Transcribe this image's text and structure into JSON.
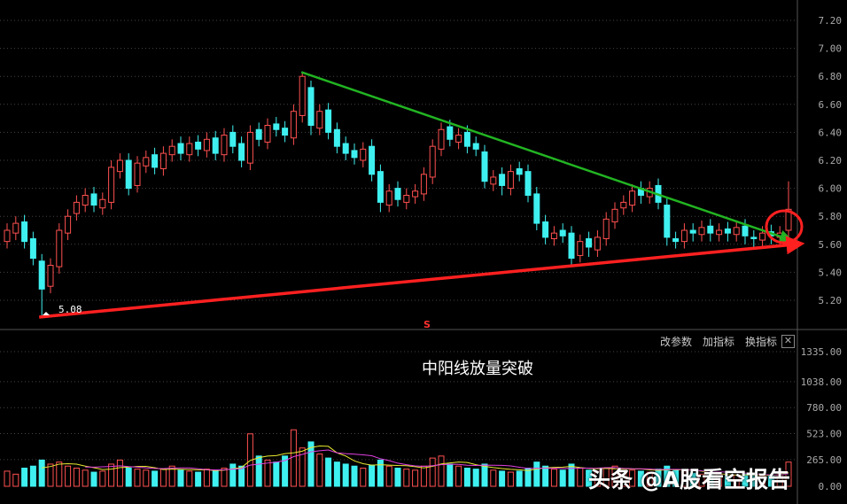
{
  "chart_data": [
    {
      "type": "candlestick",
      "title": "",
      "y_axis": {
        "ticks": [
          "7.20",
          "7.00",
          "6.80",
          "6.60",
          "6.40",
          "6.20",
          "6.00",
          "5.80",
          "5.60",
          "5.40",
          "5.20"
        ],
        "range": [
          5.2,
          7.2
        ],
        "position": "right"
      },
      "grid": true,
      "open": [
        5.62,
        5.68,
        5.76,
        5.64,
        5.48,
        5.3,
        5.44,
        5.68,
        5.82,
        5.88,
        5.96,
        5.86,
        5.9,
        6.12,
        6.2,
        6.02,
        6.16,
        6.24,
        6.14,
        6.24,
        6.32,
        6.24,
        6.33,
        6.27,
        6.36,
        6.24,
        6.4,
        6.32,
        6.18,
        6.42,
        6.33,
        6.46,
        6.43,
        6.36,
        6.52,
        6.72,
        6.43,
        6.56,
        6.42,
        6.32,
        6.27,
        6.2,
        6.3,
        6.12,
        5.88,
        6.0,
        5.9,
        5.94,
        5.96,
        6.08,
        6.28,
        6.44,
        6.33,
        6.4,
        6.32,
        6.26,
        6.03,
        6.1,
        6.0,
        6.14,
        6.12,
        5.96,
        5.76,
        5.64,
        5.7,
        5.68,
        5.52,
        5.64,
        5.56,
        5.64,
        5.76,
        5.86,
        5.88,
        6.0,
        5.94,
        6.02,
        5.88,
        5.64,
        5.62,
        5.7,
        5.67,
        5.73,
        5.67,
        5.71,
        5.67,
        5.73,
        5.65,
        5.63,
        5.69,
        5.65,
        5.7
      ],
      "high": [
        5.75,
        5.8,
        5.81,
        5.69,
        5.53,
        5.5,
        5.75,
        5.85,
        5.95,
        6.0,
        6.01,
        5.97,
        6.2,
        6.25,
        6.25,
        6.23,
        6.27,
        6.29,
        6.3,
        6.35,
        6.37,
        6.37,
        6.38,
        6.4,
        6.41,
        6.43,
        6.45,
        6.37,
        6.45,
        6.47,
        6.5,
        6.51,
        6.48,
        6.6,
        6.83,
        6.77,
        6.6,
        6.61,
        6.47,
        6.37,
        6.32,
        6.33,
        6.35,
        6.17,
        6.03,
        6.05,
        6.0,
        6.03,
        6.15,
        6.35,
        6.47,
        6.49,
        6.43,
        6.45,
        6.37,
        6.31,
        6.13,
        6.15,
        6.17,
        6.19,
        6.17,
        6.01,
        5.81,
        5.73,
        5.75,
        5.73,
        5.67,
        5.69,
        5.7,
        5.83,
        5.9,
        5.95,
        6.03,
        6.05,
        6.05,
        6.07,
        5.93,
        5.69,
        5.75,
        5.75,
        5.77,
        5.78,
        5.75,
        5.76,
        5.77,
        5.78,
        5.7,
        5.73,
        5.74,
        5.73,
        6.05
      ],
      "low": [
        5.57,
        5.63,
        5.57,
        5.45,
        5.08,
        5.25,
        5.39,
        5.63,
        5.77,
        5.83,
        5.83,
        5.81,
        5.85,
        6.07,
        5.95,
        5.97,
        6.11,
        6.1,
        6.09,
        6.19,
        6.2,
        6.19,
        6.23,
        6.22,
        6.2,
        6.19,
        6.25,
        6.15,
        6.13,
        6.3,
        6.28,
        6.37,
        6.33,
        6.31,
        6.47,
        6.38,
        6.38,
        6.35,
        6.25,
        6.2,
        6.17,
        6.15,
        6.05,
        5.83,
        5.83,
        5.87,
        5.85,
        5.89,
        5.91,
        6.03,
        6.23,
        6.3,
        6.28,
        6.25,
        6.23,
        6.0,
        5.98,
        5.95,
        5.95,
        6.05,
        5.9,
        5.7,
        5.6,
        5.59,
        5.61,
        5.45,
        5.47,
        5.51,
        5.51,
        5.59,
        5.71,
        5.81,
        5.83,
        5.89,
        5.89,
        5.85,
        5.59,
        5.57,
        5.57,
        5.62,
        5.62,
        5.62,
        5.62,
        5.62,
        5.62,
        5.6,
        5.58,
        5.58,
        5.6,
        5.6,
        5.65
      ],
      "close": [
        5.7,
        5.75,
        5.62,
        5.5,
        5.28,
        5.45,
        5.7,
        5.8,
        5.9,
        5.95,
        5.88,
        5.92,
        6.15,
        6.2,
        6.0,
        6.18,
        6.22,
        6.15,
        6.25,
        6.3,
        6.25,
        6.32,
        6.28,
        6.35,
        6.25,
        6.38,
        6.3,
        6.2,
        6.4,
        6.35,
        6.45,
        6.42,
        6.38,
        6.55,
        6.8,
        6.45,
        6.55,
        6.4,
        6.3,
        6.25,
        6.22,
        6.28,
        6.1,
        5.9,
        5.98,
        5.92,
        5.95,
        5.98,
        6.1,
        6.3,
        6.42,
        6.35,
        6.38,
        6.3,
        6.28,
        6.05,
        6.08,
        6.02,
        6.12,
        6.1,
        5.95,
        5.75,
        5.65,
        5.68,
        5.66,
        5.5,
        5.62,
        5.58,
        5.65,
        5.78,
        5.85,
        5.9,
        5.98,
        5.95,
        6.0,
        5.9,
        5.65,
        5.62,
        5.7,
        5.68,
        5.72,
        5.68,
        5.7,
        5.68,
        5.72,
        5.66,
        5.64,
        5.68,
        5.66,
        5.68,
        5.85
      ],
      "low_annotation": "5.08",
      "trendlines": [
        {
          "color": "#22b422",
          "from_index": 34,
          "from_price": 6.83,
          "to_price": 5.64,
          "arrow": true
        },
        {
          "color": "#ff2020",
          "from_index": 4,
          "from_price": 5.08,
          "to_price": 5.6,
          "arrow": true
        }
      ],
      "highlight_circle_color": "#ff2020",
      "signal_marker": "S",
      "up_color": "#ff5050",
      "down_color": "#3ff0f0"
    },
    {
      "type": "bar",
      "title": "",
      "y_axis": {
        "ticks": [
          "1335.00",
          "1038.00",
          "780.00",
          "523.00",
          "265.00",
          "0.00"
        ],
        "range": [
          0,
          1335
        ],
        "position": "right"
      },
      "grid": true,
      "volume": [
        150,
        120,
        180,
        200,
        260,
        220,
        240,
        200,
        180,
        160,
        140,
        150,
        220,
        260,
        180,
        170,
        160,
        150,
        170,
        200,
        160,
        150,
        140,
        170,
        160,
        180,
        220,
        200,
        520,
        300,
        260,
        240,
        300,
        560,
        380,
        440,
        320,
        280,
        240,
        220,
        200,
        180,
        210,
        260,
        200,
        180,
        170,
        160,
        200,
        280,
        300,
        220,
        200,
        180,
        170,
        220,
        160,
        150,
        140,
        150,
        180,
        240,
        200,
        170,
        160,
        220,
        180,
        160,
        150,
        180,
        200,
        170,
        160,
        150,
        140,
        170,
        200,
        160,
        140,
        130,
        120,
        110,
        120,
        100,
        110,
        120,
        110,
        100,
        110,
        120,
        240
      ],
      "ma_lines": [
        {
          "color": "#e8e830",
          "period": 5
        },
        {
          "color": "#e040e0",
          "period": 10
        }
      ]
    }
  ],
  "indicator_menu": {
    "items": [
      "改参数",
      "加指标",
      "换指标"
    ],
    "close_icon": "close-icon"
  },
  "annotation": "中阳线放量突破",
  "watermark": "头条 @A股看空报告"
}
